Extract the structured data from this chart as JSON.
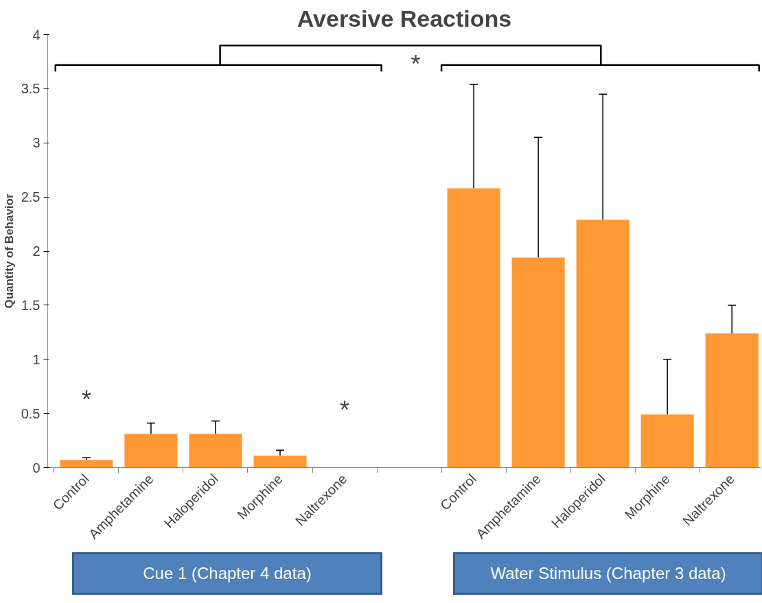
{
  "chart_data": {
    "type": "bar",
    "title": "Aversive Reactions",
    "ylabel": "Quantity of Behavior",
    "categories": [
      "Control",
      "Amphetamine",
      "Haloperidol",
      "Morphine",
      "Naltrexone",
      null,
      "Control",
      "Amphetamine",
      "Haloperidol",
      "Morphine",
      "Naltrexone"
    ],
    "values": [
      0.07,
      0.31,
      0.31,
      0.11,
      0,
      null,
      2.58,
      1.94,
      2.29,
      0.49,
      1.24
    ],
    "errors": [
      [
        0.07,
        0.09
      ],
      [
        0.31,
        0.41
      ],
      [
        0.31,
        0.43
      ],
      [
        0.11,
        0.16
      ],
      null,
      null,
      [
        2.58,
        3.54
      ],
      [
        1.94,
        3.05
      ],
      [
        2.29,
        3.45
      ],
      [
        0.49,
        1.0
      ],
      [
        1.24,
        1.5
      ]
    ],
    "color": "#ff9933",
    "ylim": [
      0,
      4
    ],
    "yticks": [
      0,
      0.5,
      1,
      1.5,
      2,
      2.5,
      3,
      3.5,
      4
    ],
    "grid": false,
    "annotations": [
      "*",
      "*",
      "*",
      "Cue 1 (Chapter 4 data)",
      "Water Stimulus (Chapter 3 data)"
    ]
  }
}
